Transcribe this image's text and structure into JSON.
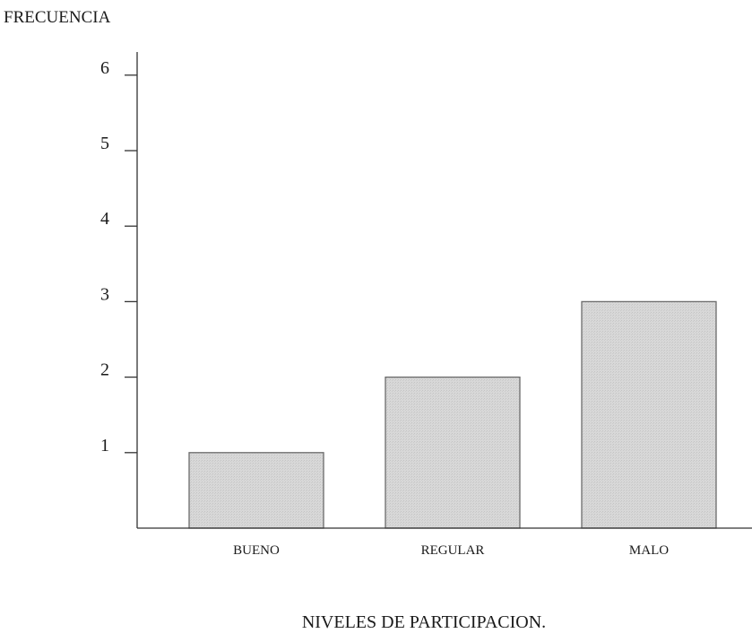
{
  "chart_data": {
    "type": "bar",
    "ylabel": "FRECUENCIA",
    "xlabel": "NIVELES DE PARTICIPACION.",
    "categories": [
      "BUENO",
      "REGULAR",
      "MALO"
    ],
    "values": [
      1,
      2,
      3
    ],
    "yticks": [
      1,
      2,
      3,
      4,
      5,
      6
    ],
    "ylim": [
      0,
      6
    ],
    "grid": false,
    "legend": "none",
    "colors": {
      "bar_fill": "#d6d6d6",
      "bar_stroke": "#6b6b6b",
      "axis": "#333333"
    }
  }
}
